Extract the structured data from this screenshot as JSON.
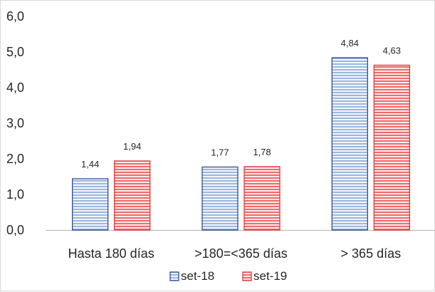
{
  "chart_data": {
    "type": "bar",
    "categories": [
      "Hasta 180 días",
      ">180=<365 días",
      "> 365 días"
    ],
    "series": [
      {
        "name": "set-18",
        "values": [
          1.44,
          1.77,
          4.84
        ],
        "labels": [
          "1,44",
          "1,77",
          "4,84"
        ],
        "color": "#2e4f8f",
        "stripe": "#b7cbe9"
      },
      {
        "name": "set-19",
        "values": [
          1.94,
          1.78,
          4.63
        ],
        "labels": [
          "1,94",
          "1,78",
          "4,63"
        ],
        "color": "#e03a3a",
        "stripe": "#f6b3b3"
      }
    ],
    "ylim": [
      0,
      6
    ],
    "yticks": [
      0,
      1,
      2,
      3,
      4,
      5,
      6
    ],
    "ytick_labels": [
      "0,0",
      "1,0",
      "2,0",
      "3,0",
      "4,0",
      "5,0",
      "6,0"
    ],
    "legend_position": "bottom",
    "grid": false
  }
}
